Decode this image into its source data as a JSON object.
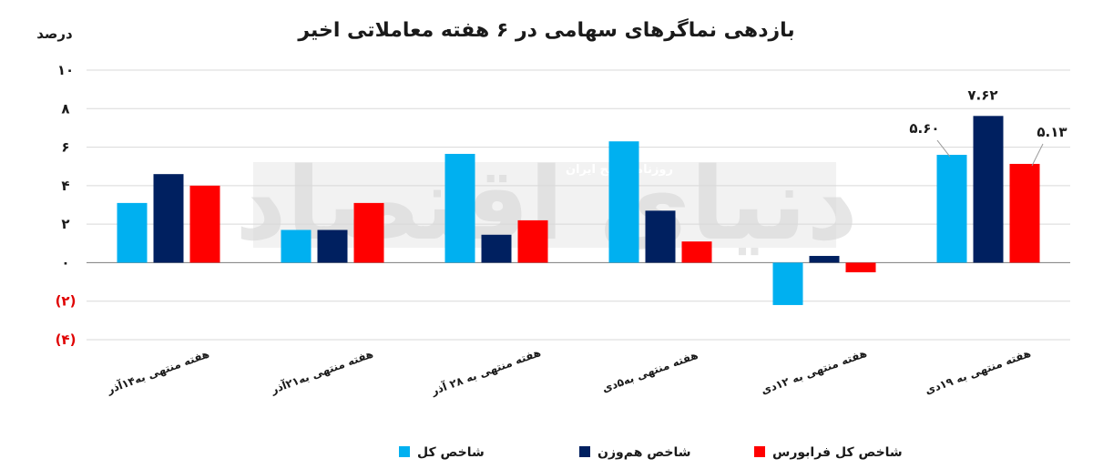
{
  "chart_data": {
    "type": "bar",
    "title": "بازدهی نماگرهای سهامی در ۶ هفته معاملاتی اخیر",
    "ylabel": "درصد",
    "ylim": [
      -4,
      10
    ],
    "yticks": [
      {
        "value": 10,
        "label": "۱۰"
      },
      {
        "value": 8,
        "label": "۸"
      },
      {
        "value": 6,
        "label": "۶"
      },
      {
        "value": 4,
        "label": "۴"
      },
      {
        "value": 2,
        "label": "۲"
      },
      {
        "value": 0,
        "label": "۰"
      },
      {
        "value": -2,
        "label": "(۲)"
      },
      {
        "value": -4,
        "label": "(۴)"
      }
    ],
    "categories": [
      "هفته منتهی به۱۴آذر",
      "هفته منتهی به۲۱آذر",
      "هفته منتهی به ۲۸ آذر",
      "هفته منتهی به۵دی",
      "هفته منتهی به ۱۲دی",
      "هفته منتهی به ۱۹دی"
    ],
    "series": [
      {
        "name": "شاخص کل",
        "color": "#00b0f0",
        "values": [
          3.1,
          1.7,
          5.65,
          6.3,
          -2.2,
          5.6
        ]
      },
      {
        "name": "شاخص هم‌وزن",
        "color": "#002060",
        "values": [
          4.6,
          1.7,
          1.45,
          2.7,
          0.35,
          7.62
        ]
      },
      {
        "name": "شاخص کل فرابورس",
        "color": "#ff0000",
        "values": [
          4.0,
          3.1,
          2.2,
          1.1,
          -0.5,
          5.13
        ]
      }
    ],
    "data_labels": [
      {
        "series": 0,
        "category": 5,
        "text": "۵.۶۰"
      },
      {
        "series": 1,
        "category": 5,
        "text": "۷.۶۲"
      },
      {
        "series": 2,
        "category": 5,
        "text": "۵.۱۳"
      }
    ],
    "grid": true,
    "legend": "bottom"
  },
  "watermark": {
    "brand": "دنیای اقتصاد",
    "tagline": "روزنامه صبح ایران"
  }
}
